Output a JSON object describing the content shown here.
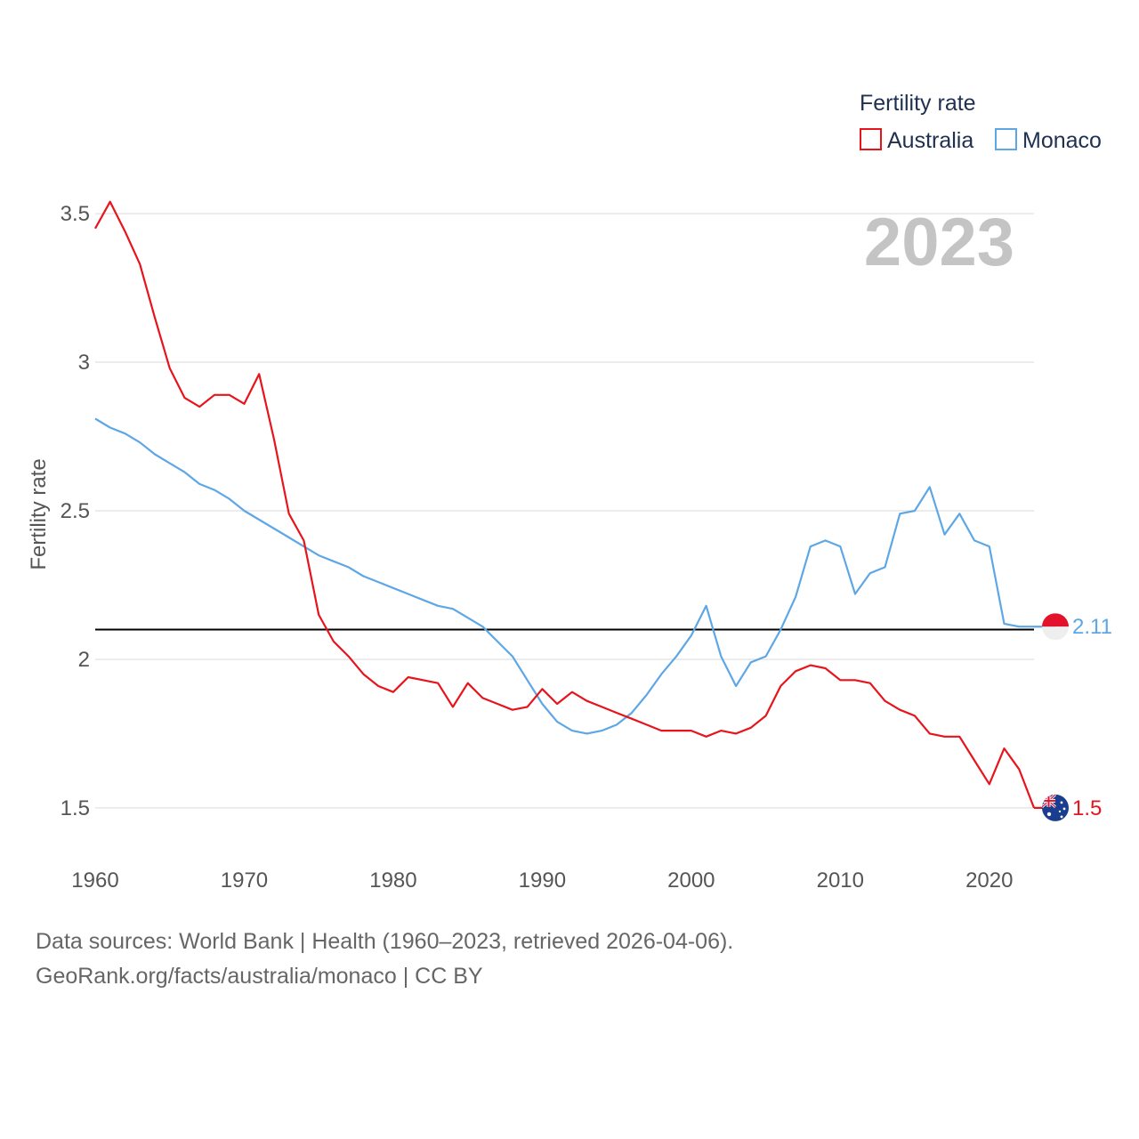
{
  "chart_data": {
    "type": "line",
    "title": "Fertility rate",
    "ylabel": "Fertility rate",
    "xlabel": "",
    "xlim": [
      1960,
      2023
    ],
    "ylim": [
      1.35,
      3.62
    ],
    "x_ticks": [
      1960,
      1970,
      1980,
      1990,
      2000,
      2010,
      2020
    ],
    "y_ticks": [
      1.5,
      2,
      2.5,
      3,
      3.5
    ],
    "y_tick_labels": [
      "1.5",
      "2",
      "2.5",
      "3",
      "3.5"
    ],
    "current_year": "2023",
    "reference_line": 2.1,
    "legend_position": "top-right",
    "x": [
      1960,
      1961,
      1962,
      1963,
      1964,
      1965,
      1966,
      1967,
      1968,
      1969,
      1970,
      1971,
      1972,
      1973,
      1974,
      1975,
      1976,
      1977,
      1978,
      1979,
      1980,
      1981,
      1982,
      1983,
      1984,
      1985,
      1986,
      1987,
      1988,
      1989,
      1990,
      1991,
      1992,
      1993,
      1994,
      1995,
      1996,
      1997,
      1998,
      1999,
      2000,
      2001,
      2002,
      2003,
      2004,
      2005,
      2006,
      2007,
      2008,
      2009,
      2010,
      2011,
      2012,
      2013,
      2014,
      2015,
      2016,
      2017,
      2018,
      2019,
      2020,
      2021,
      2022,
      2023
    ],
    "series": [
      {
        "name": "Australia",
        "color": "#e8141c",
        "end_label": "1.5",
        "flag": "australia-flag-icon",
        "values": [
          3.45,
          3.54,
          3.44,
          3.33,
          3.15,
          2.98,
          2.88,
          2.85,
          2.89,
          2.89,
          2.86,
          2.96,
          2.74,
          2.49,
          2.4,
          2.15,
          2.06,
          2.01,
          1.95,
          1.91,
          1.89,
          1.94,
          1.93,
          1.92,
          1.84,
          1.92,
          1.87,
          1.85,
          1.83,
          1.84,
          1.9,
          1.85,
          1.89,
          1.86,
          1.84,
          1.82,
          1.8,
          1.78,
          1.76,
          1.76,
          1.76,
          1.74,
          1.76,
          1.75,
          1.77,
          1.81,
          1.91,
          1.96,
          1.98,
          1.97,
          1.93,
          1.93,
          1.92,
          1.86,
          1.83,
          1.81,
          1.75,
          1.74,
          1.74,
          1.66,
          1.58,
          1.7,
          1.63,
          1.5
        ]
      },
      {
        "name": "Monaco",
        "color": "#5ea7e6",
        "end_label": "2.11",
        "flag": "monaco-flag-icon",
        "values": [
          2.81,
          2.78,
          2.76,
          2.73,
          2.69,
          2.66,
          2.63,
          2.59,
          2.57,
          2.54,
          2.5,
          2.47,
          2.44,
          2.41,
          2.38,
          2.35,
          2.33,
          2.31,
          2.28,
          2.26,
          2.24,
          2.22,
          2.2,
          2.18,
          2.17,
          2.14,
          2.11,
          2.06,
          2.01,
          1.93,
          1.85,
          1.79,
          1.76,
          1.75,
          1.76,
          1.78,
          1.82,
          1.88,
          1.95,
          2.01,
          2.08,
          2.18,
          2.01,
          1.91,
          1.99,
          2.01,
          2.1,
          2.21,
          2.38,
          2.4,
          2.38,
          2.22,
          2.29,
          2.31,
          2.49,
          2.5,
          2.58,
          2.42,
          2.49,
          2.4,
          2.38,
          2.12,
          2.11,
          2.11
        ]
      }
    ]
  },
  "source": {
    "line1": "Data sources: World Bank | Health (1960–2023, retrieved 2026-04-06).",
    "line2": "GeoRank.org/facts/australia/monaco | CC BY"
  }
}
